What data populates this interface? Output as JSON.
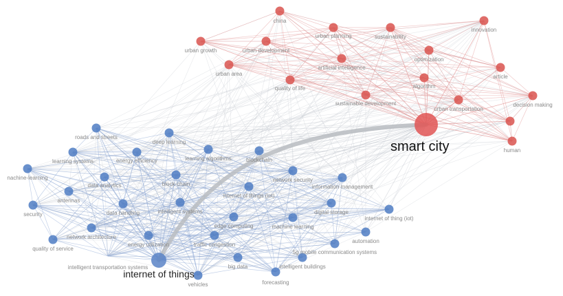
{
  "colors": {
    "cluster_red": "#d9534f",
    "cluster_blue": "#4f7cc3",
    "hub_red": "#e05555",
    "hub_blue": "#5a84c7"
  },
  "network": {
    "nodes": [
      {
        "id": "smart-city",
        "label": "smart city",
        "cluster": "red",
        "weight": 5
      },
      {
        "id": "china",
        "label": "china",
        "cluster": "red",
        "weight": 1
      },
      {
        "id": "innovation",
        "label": "innovation",
        "cluster": "red",
        "weight": 1
      },
      {
        "id": "urban-planning",
        "label": "urban planning",
        "cluster": "red",
        "weight": 1
      },
      {
        "id": "sustainability",
        "label": "sustainability",
        "cluster": "red",
        "weight": 1
      },
      {
        "id": "urban-growth",
        "label": "urban growth",
        "cluster": "red",
        "weight": 1
      },
      {
        "id": "urban-development",
        "label": "urban development",
        "cluster": "red",
        "weight": 1
      },
      {
        "id": "optimization",
        "label": "optimization",
        "cluster": "red",
        "weight": 1
      },
      {
        "id": "artificial-intelligence",
        "label": "artificial intelligence",
        "cluster": "red",
        "weight": 1
      },
      {
        "id": "article",
        "label": "article",
        "cluster": "red",
        "weight": 1
      },
      {
        "id": "urban-area",
        "label": "urban area",
        "cluster": "red",
        "weight": 1
      },
      {
        "id": "algorithm",
        "label": "algorithm",
        "cluster": "red",
        "weight": 1
      },
      {
        "id": "quality-of-life",
        "label": "quality of life",
        "cluster": "red",
        "weight": 1
      },
      {
        "id": "decision-making",
        "label": "decision making",
        "cluster": "red",
        "weight": 1
      },
      {
        "id": "sustainable-development",
        "label": "sustainable development",
        "cluster": "red",
        "weight": 1
      },
      {
        "id": "urban-transportation",
        "label": "urban transportation",
        "cluster": "red",
        "weight": 1
      },
      {
        "id": "human",
        "label": "human",
        "cluster": "red",
        "weight": 1
      },
      {
        "id": "red-extra",
        "label": "",
        "cluster": "red",
        "weight": 1
      },
      {
        "id": "internet-of-things",
        "label": "internet of things",
        "cluster": "blue",
        "weight": 3
      },
      {
        "id": "roads-and-streets",
        "label": "roads and streets",
        "cluster": "blue",
        "weight": 1
      },
      {
        "id": "deep-learning",
        "label": "deep learning",
        "cluster": "blue",
        "weight": 1
      },
      {
        "id": "learning-systems",
        "label": "learning systems",
        "cluster": "blue",
        "weight": 1
      },
      {
        "id": "energy-efficiency",
        "label": "energy efficiency",
        "cluster": "blue",
        "weight": 1
      },
      {
        "id": "learning-algorithms",
        "label": "learning algorithms",
        "cluster": "blue",
        "weight": 1
      },
      {
        "id": "blockchain",
        "label": "blockchain",
        "cluster": "blue",
        "weight": 1
      },
      {
        "id": "machine-learning-left",
        "label": "nachine-learning",
        "cluster": "blue",
        "weight": 1
      },
      {
        "id": "data-analytics",
        "label": "data analytics",
        "cluster": "blue",
        "weight": 1
      },
      {
        "id": "block-chain",
        "label": "block-chain",
        "cluster": "blue",
        "weight": 1
      },
      {
        "id": "network-security",
        "label": "network security",
        "cluster": "blue",
        "weight": 1
      },
      {
        "id": "information-management",
        "label": "information management",
        "cluster": "blue",
        "weight": 1
      },
      {
        "id": "antennas",
        "label": "antennas",
        "cluster": "blue",
        "weight": 1
      },
      {
        "id": "internet-of-things-iot",
        "label": "internet of things (iot)",
        "cluster": "blue",
        "weight": 1
      },
      {
        "id": "security",
        "label": "security",
        "cluster": "blue",
        "weight": 1
      },
      {
        "id": "data-handling",
        "label": "data handling",
        "cluster": "blue",
        "weight": 1
      },
      {
        "id": "intelligent-systems",
        "label": "intelligent systems",
        "cluster": "blue",
        "weight": 1
      },
      {
        "id": "digital-storage",
        "label": "digital storage",
        "cluster": "blue",
        "weight": 1
      },
      {
        "id": "internet-of-thing-iot",
        "label": "internet of thing (iot)",
        "cluster": "blue",
        "weight": 1
      },
      {
        "id": "edge-computing",
        "label": "edge computing",
        "cluster": "blue",
        "weight": 1
      },
      {
        "id": "machine-learning",
        "label": "machine learning",
        "cluster": "blue",
        "weight": 1
      },
      {
        "id": "network-architecture",
        "label": "network architecture",
        "cluster": "blue",
        "weight": 1
      },
      {
        "id": "quality-of-service",
        "label": "quality of service",
        "cluster": "blue",
        "weight": 1
      },
      {
        "id": "energy-utilization",
        "label": "energy utilization",
        "cluster": "blue",
        "weight": 1
      },
      {
        "id": "traffic-congestion",
        "label": "traffic congestion",
        "cluster": "blue",
        "weight": 1
      },
      {
        "id": "automation",
        "label": "automation",
        "cluster": "blue",
        "weight": 1
      },
      {
        "id": "5g-mobile",
        "label": "5g mobile communication systems",
        "cluster": "blue",
        "weight": 1
      },
      {
        "id": "intelligent-transportation-systems",
        "label": "intelligent transportation systems",
        "cluster": "blue",
        "weight": 1
      },
      {
        "id": "big-data",
        "label": "big data",
        "cluster": "blue",
        "weight": 1
      },
      {
        "id": "intelligent-buildings",
        "label": "intelligent buildings",
        "cluster": "blue",
        "weight": 1
      },
      {
        "id": "vehicles",
        "label": "vehicles",
        "cluster": "blue",
        "weight": 1
      },
      {
        "id": "forecasting",
        "label": "forecasting",
        "cluster": "blue",
        "weight": 1
      }
    ]
  }
}
